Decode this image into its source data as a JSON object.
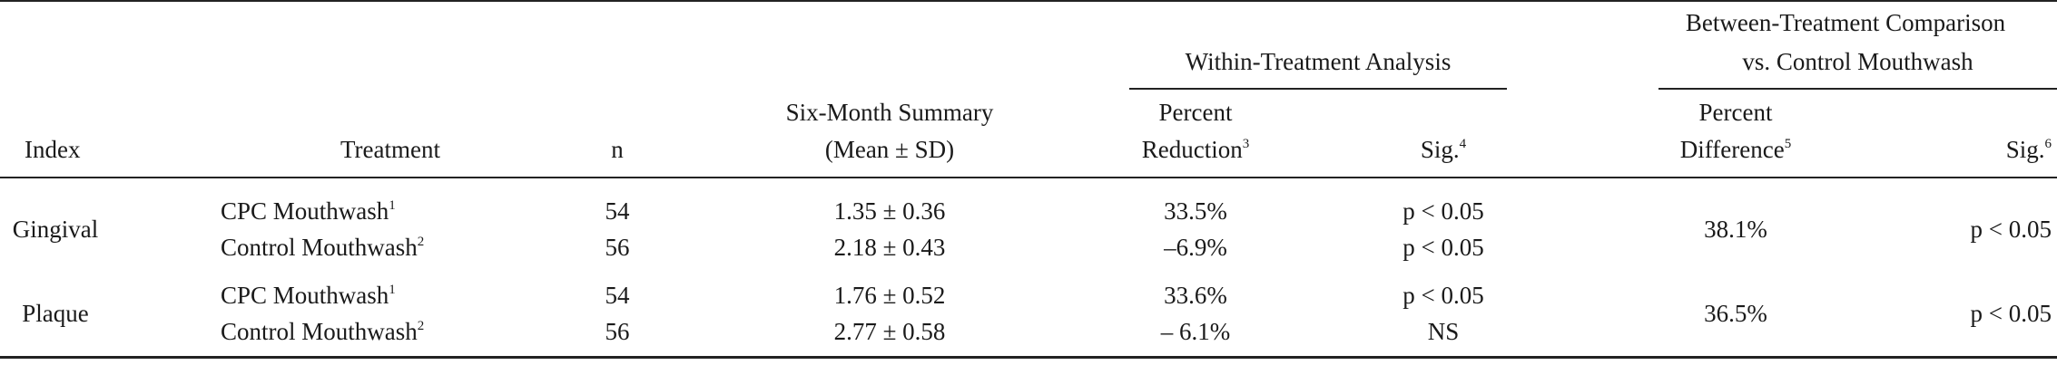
{
  "group_headers": {
    "within": "Within-Treatment Analysis",
    "between_line1": "Between-Treatment Comparison",
    "between_line2": "vs. Control Mouthwash"
  },
  "columns": {
    "index": "Index",
    "treatment": "Treatment",
    "n": "n",
    "summary_line1": "Six-Month Summary",
    "summary_line2": "(Mean ± SD)",
    "reduction_line1": "Percent",
    "reduction_line2": "Reduction",
    "reduction_sup": "3",
    "sig_within": "Sig.",
    "sig_within_sup": "4",
    "difference_line1": "Percent",
    "difference_line2": "Difference",
    "difference_sup": "5",
    "sig_between": "Sig.",
    "sig_between_sup": "6"
  },
  "groups": [
    {
      "index": "Gingival",
      "rows": [
        {
          "treatment": "CPC Mouthwash",
          "sup": "1",
          "n": "54",
          "summary": "1.35 ± 0.36",
          "reduction": "33.5%",
          "sig": "p < 0.05"
        },
        {
          "treatment": "Control Mouthwash",
          "sup": "2",
          "n": "56",
          "summary": "2.18 ± 0.43",
          "reduction": "–6.9%",
          "sig": "p < 0.05"
        }
      ],
      "difference": "38.1%",
      "sig_between": "p < 0.05"
    },
    {
      "index": "Plaque",
      "rows": [
        {
          "treatment": "CPC Mouthwash",
          "sup": "1",
          "n": "54",
          "summary": "1.76 ± 0.52",
          "reduction": "33.6%",
          "sig": "p < 0.05"
        },
        {
          "treatment": "Control Mouthwash",
          "sup": "2",
          "n": "56",
          "summary": "2.77 ± 0.58",
          "reduction": "– 6.1%",
          "sig": "NS"
        }
      ],
      "difference": "36.5%",
      "sig_between": "p < 0.05"
    }
  ]
}
